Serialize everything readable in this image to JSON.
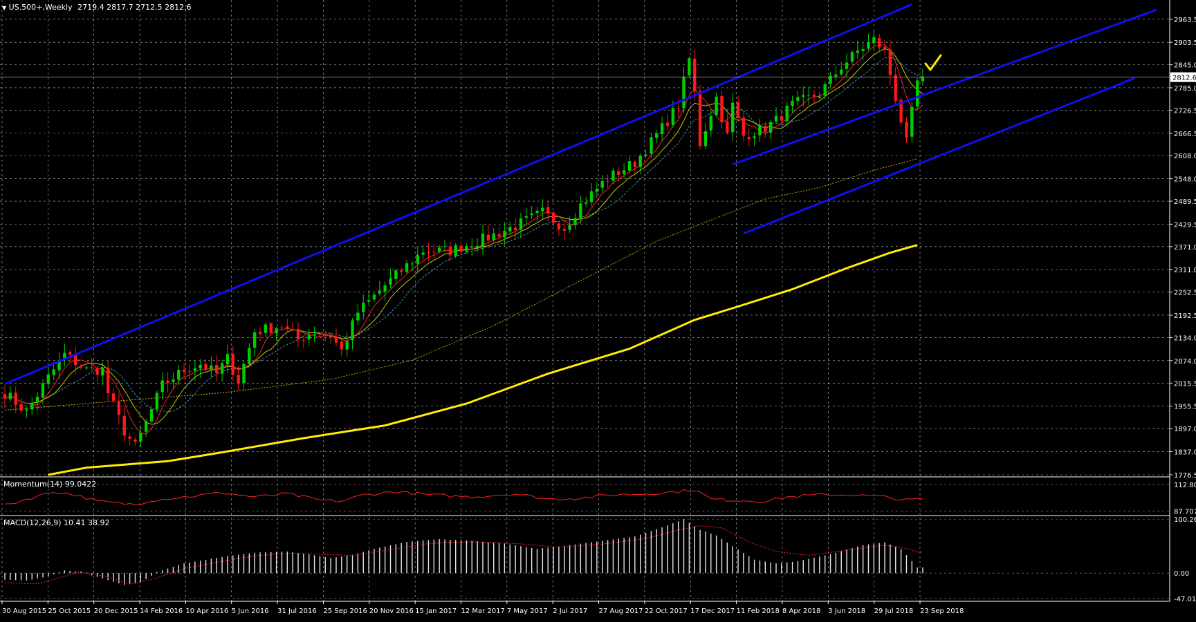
{
  "header": {
    "symbol": "US.500+,Weekly",
    "ohlc": "2719.4 2817.7 2712.5 2812.6"
  },
  "colors": {
    "background": "#000000",
    "grid": "#ffffff",
    "axis_text": "#ffffff",
    "bull_candle": "#00d000",
    "bear_candle": "#ff1a1a",
    "channel_line": "#1010ee",
    "ma_200": "#ffee00",
    "ma_100_dotted": "#c8b400",
    "ma_fast_red": "#ff2020",
    "ma_mid_yellow": "#c8c800",
    "ma_slow_cyan": "#3a9aa8",
    "momentum": "#ff2020",
    "macd_hist": "#e6e6e6",
    "macd_signal": "#ff2020",
    "check_mark": "#ffee00"
  },
  "chart_data": {
    "type": "candlestick",
    "timeframe": "Weekly",
    "last_price": "2812.6",
    "ylim": [
      1776.5,
      2992.0
    ],
    "y_ticks": [
      "2963.5",
      "2903.5",
      "2845.0",
      "2785.0",
      "2726.5",
      "2666.5",
      "2608.0",
      "2548.0",
      "2489.5",
      "2429.5",
      "2371.0",
      "2311.0",
      "2252.5",
      "2192.5",
      "2134.0",
      "2074.0",
      "2015.5",
      "1955.5",
      "1897.0",
      "1837.0",
      "1776.5"
    ],
    "x_labels": [
      "30 Aug 2015",
      "25 Oct 2015",
      "20 Dec 2015",
      "14 Feb 2016",
      "10 Apr 2016",
      "5 Jun 2016",
      "31 Jul 2016",
      "25 Sep 2016",
      "20 Nov 2016",
      "15 Jan 2017",
      "12 Mar 2017",
      "7 May 2017",
      "2 Jul 2017",
      "27 Aug 2017",
      "22 Oct 2017",
      "17 Dec 2017",
      "11 Feb 2018",
      "8 Apr 2018",
      "3 Jun 2018",
      "29 Jul 2018",
      "23 Sep 2018"
    ],
    "bar_count": 170,
    "anchors": [
      [
        0,
        1990
      ],
      [
        4,
        1940
      ],
      [
        8,
        2030
      ],
      [
        11,
        2090
      ],
      [
        15,
        2050
      ],
      [
        18,
        2050
      ],
      [
        19,
        1990
      ],
      [
        22,
        1890
      ],
      [
        24,
        1850
      ],
      [
        25,
        1880
      ],
      [
        29,
        2010
      ],
      [
        33,
        2050
      ],
      [
        36,
        2065
      ],
      [
        39,
        2040
      ],
      [
        41,
        2080
      ],
      [
        43,
        2020
      ],
      [
        46,
        2150
      ],
      [
        51,
        2165
      ],
      [
        54,
        2130
      ],
      [
        57,
        2150
      ],
      [
        60,
        2140
      ],
      [
        62,
        2100
      ],
      [
        65,
        2200
      ],
      [
        70,
        2270
      ],
      [
        77,
        2360
      ],
      [
        82,
        2360
      ],
      [
        88,
        2390
      ],
      [
        94,
        2425
      ],
      [
        99,
        2460
      ],
      [
        103,
        2420
      ],
      [
        106,
        2480
      ],
      [
        111,
        2550
      ],
      [
        116,
        2590
      ],
      [
        121,
        2680
      ],
      [
        124,
        2740
      ],
      [
        126,
        2860
      ],
      [
        127,
        2770
      ],
      [
        128,
        2640
      ],
      [
        129,
        2680
      ],
      [
        131,
        2760
      ],
      [
        133,
        2660
      ],
      [
        134,
        2740
      ],
      [
        136,
        2660
      ],
      [
        140,
        2680
      ],
      [
        142,
        2700
      ],
      [
        145,
        2740
      ],
      [
        150,
        2770
      ],
      [
        154,
        2840
      ],
      [
        157,
        2880
      ],
      [
        160,
        2910
      ],
      [
        162,
        2880
      ],
      [
        164,
        2760
      ],
      [
        166,
        2640
      ],
      [
        168,
        2800
      ],
      [
        169,
        2812.6
      ]
    ],
    "channels": [
      {
        "name": "upper",
        "points": [
          [
            0,
            2013
          ],
          [
            167,
            3002
          ]
        ]
      },
      {
        "name": "middle",
        "points": [
          [
            134,
            2585
          ],
          [
            212,
            2988
          ]
        ]
      },
      {
        "name": "lower",
        "points": [
          [
            136,
            2405
          ],
          [
            208,
            2810
          ]
        ]
      }
    ],
    "ma_200_points": [
      [
        8,
        1776.5
      ],
      [
        15,
        1795
      ],
      [
        30,
        1812
      ],
      [
        40,
        1835
      ],
      [
        55,
        1872
      ],
      [
        70,
        1905
      ],
      [
        85,
        1962
      ],
      [
        100,
        2040
      ],
      [
        115,
        2105
      ],
      [
        127,
        2180
      ],
      [
        135,
        2215
      ],
      [
        145,
        2260
      ],
      [
        155,
        2315
      ],
      [
        163,
        2355
      ],
      [
        168,
        2375
      ]
    ],
    "ma_100_points": [
      [
        0,
        1945
      ],
      [
        20,
        1968
      ],
      [
        40,
        1990
      ],
      [
        60,
        2025
      ],
      [
        75,
        2075
      ],
      [
        90,
        2165
      ],
      [
        105,
        2275
      ],
      [
        120,
        2385
      ],
      [
        130,
        2440
      ],
      [
        140,
        2495
      ],
      [
        150,
        2525
      ],
      [
        160,
        2570
      ],
      [
        168,
        2600
      ]
    ],
    "momentum": {
      "title": "Momentum(14) 99.0422",
      "ticks": [
        "112.8025",
        "87.7073"
      ],
      "ylim": [
        85.5,
        114.0
      ],
      "anchors": [
        [
          0,
          93
        ],
        [
          4,
          99
        ],
        [
          9,
          106
        ],
        [
          13,
          103
        ],
        [
          17,
          97
        ],
        [
          21,
          95
        ],
        [
          24,
          94
        ],
        [
          27,
          98
        ],
        [
          31,
          100
        ],
        [
          35,
          102
        ],
        [
          40,
          105
        ],
        [
          46,
          101
        ],
        [
          52,
          104
        ],
        [
          58,
          98
        ],
        [
          62,
          97
        ],
        [
          66,
          103
        ],
        [
          72,
          106
        ],
        [
          78,
          103
        ],
        [
          86,
          101
        ],
        [
          94,
          104
        ],
        [
          100,
          99
        ],
        [
          106,
          100
        ],
        [
          112,
          103
        ],
        [
          118,
          104
        ],
        [
          124,
          106
        ],
        [
          127,
          108
        ],
        [
          130,
          99
        ],
        [
          134,
          98
        ],
        [
          140,
          97
        ],
        [
          144,
          101
        ],
        [
          150,
          103
        ],
        [
          156,
          103
        ],
        [
          162,
          101
        ],
        [
          166,
          98
        ],
        [
          168,
          99.04
        ]
      ]
    },
    "macd": {
      "title": "MACD(12,26,9) 10.41 38.92",
      "ticks": [
        "100.26",
        "0.00",
        "-47.01"
      ],
      "ylim": [
        -48.5,
        103.0
      ],
      "hist_anchors": [
        [
          0,
          -12
        ],
        [
          4,
          -14
        ],
        [
          8,
          -6
        ],
        [
          11,
          5
        ],
        [
          14,
          2
        ],
        [
          18,
          -10
        ],
        [
          22,
          -22
        ],
        [
          25,
          -18
        ],
        [
          28,
          2
        ],
        [
          33,
          18
        ],
        [
          40,
          30
        ],
        [
          46,
          38
        ],
        [
          52,
          40
        ],
        [
          56,
          35
        ],
        [
          60,
          28
        ],
        [
          64,
          34
        ],
        [
          68,
          45
        ],
        [
          74,
          58
        ],
        [
          80,
          63
        ],
        [
          86,
          60
        ],
        [
          92,
          55
        ],
        [
          98,
          45
        ],
        [
          104,
          52
        ],
        [
          110,
          60
        ],
        [
          116,
          68
        ],
        [
          121,
          85
        ],
        [
          125,
          100
        ],
        [
          128,
          80
        ],
        [
          131,
          70
        ],
        [
          134,
          50
        ],
        [
          138,
          25
        ],
        [
          142,
          18
        ],
        [
          146,
          22
        ],
        [
          152,
          35
        ],
        [
          158,
          52
        ],
        [
          162,
          57
        ],
        [
          165,
          45
        ],
        [
          168,
          10.41
        ]
      ],
      "signal_anchors": [
        [
          0,
          -18
        ],
        [
          6,
          -20
        ],
        [
          11,
          -6
        ],
        [
          14,
          3
        ],
        [
          18,
          -5
        ],
        [
          23,
          -20
        ],
        [
          27,
          -12
        ],
        [
          33,
          8
        ],
        [
          40,
          22
        ],
        [
          46,
          32
        ],
        [
          52,
          37
        ],
        [
          58,
          35
        ],
        [
          64,
          33
        ],
        [
          70,
          42
        ],
        [
          78,
          55
        ],
        [
          86,
          58
        ],
        [
          94,
          55
        ],
        [
          102,
          48
        ],
        [
          110,
          54
        ],
        [
          118,
          64
        ],
        [
          124,
          80
        ],
        [
          128,
          88
        ],
        [
          132,
          84
        ],
        [
          137,
          58
        ],
        [
          142,
          40
        ],
        [
          148,
          33
        ],
        [
          156,
          44
        ],
        [
          162,
          52
        ],
        [
          166,
          46
        ],
        [
          168,
          38.92
        ]
      ]
    }
  }
}
